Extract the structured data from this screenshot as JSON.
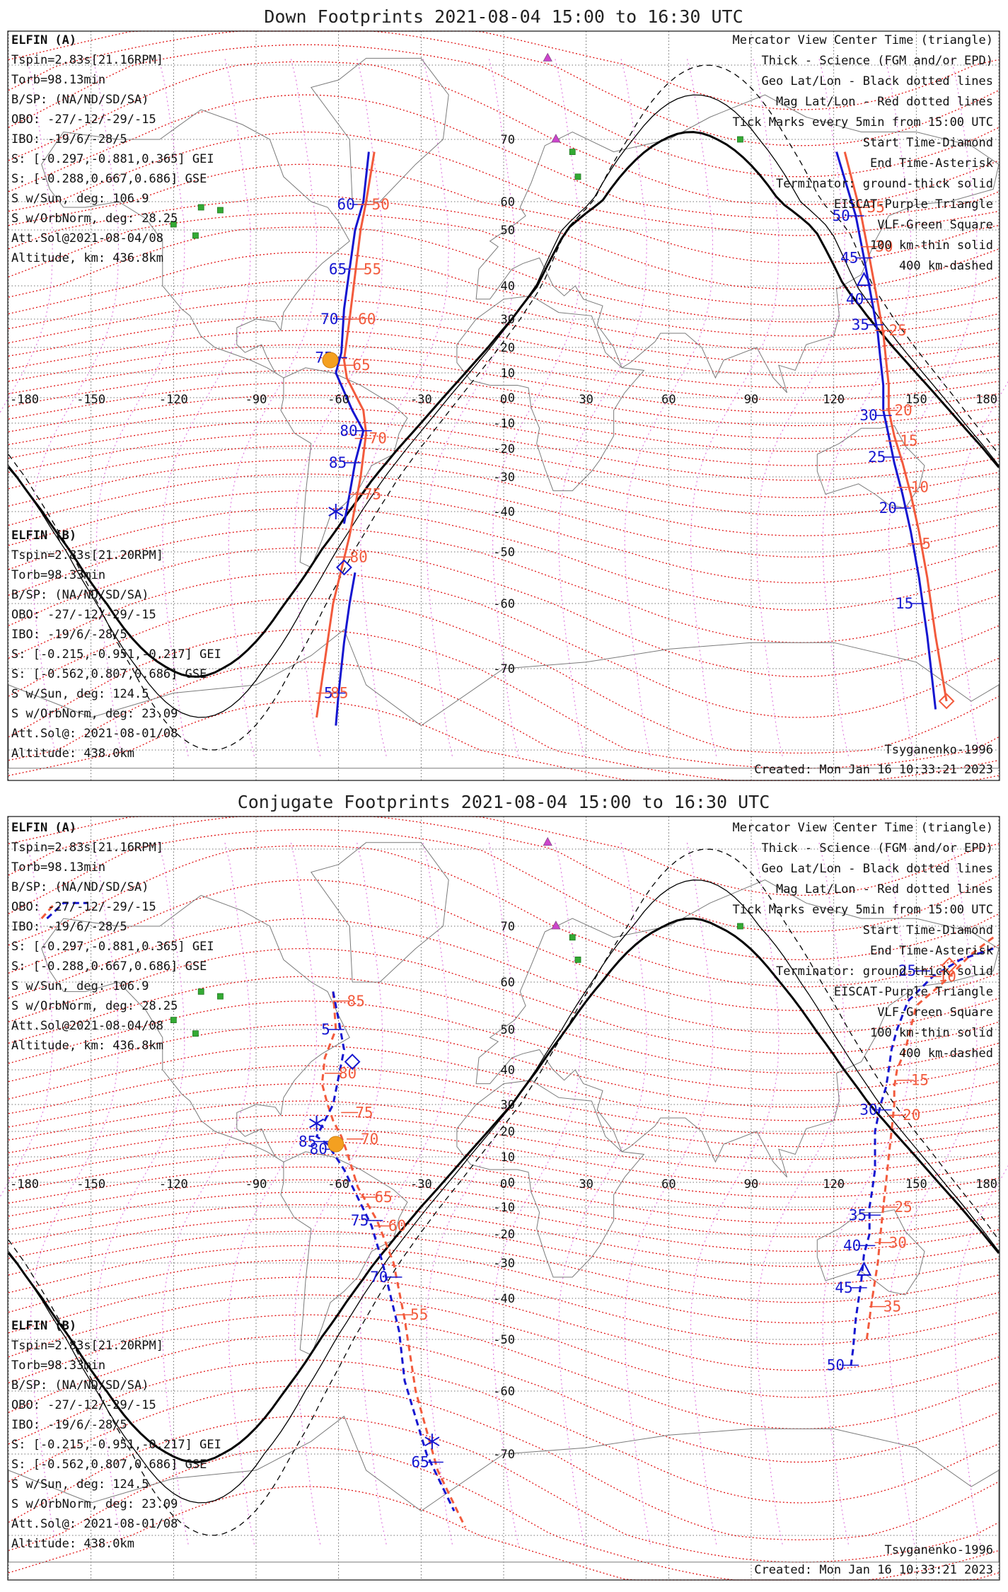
{
  "colors": {
    "elfin_a": "#1515d0",
    "elfin_b": "#f25a3c",
    "mag_grid": "#e01010",
    "eiscat": "#cc44cc",
    "vlf": "#33aa33",
    "geo_grid": "#000000",
    "sun": "#f4a020"
  },
  "panels": [
    {
      "id": "down",
      "title": "Down Footprints 2021-08-04 15:00 to 16:30 UTC",
      "sat_a": {
        "name": "ELFIN (A)",
        "lines": [
          "Tspin=2.83s[21.16RPM]",
          "Torb=98.13min",
          "B/SP: (NA/ND/SD/SA)",
          "OBO: -27/-12/-29/-15",
          "IBO: -19/6/-28/5",
          "S: [-0.297,-0.881,0.365] GEI",
          "S: [-0.288,0.667,0.686] GSE",
          "S w/Sun, deg: 106.9",
          "S w/OrbNorm, deg: 28.25",
          "Att.Sol@2021-08-04/08",
          "Altitude, km: 436.8km"
        ]
      },
      "sat_b": {
        "name": "ELFIN (B)",
        "lines": [
          "Tspin=2.83s[21.20RPM]",
          "Torb=98.33min",
          "B/SP: (NA/ND/SD/SA)",
          "OBO: -27/-12/-29/-15",
          "IBO: -19/6/-28/5",
          "S: [-0.215,-0.951,-0.217] GEI",
          "S: [-0.562,0.807,0.686] GSE",
          "S w/Sun, deg: 124.5",
          "S w/OrbNorm, deg: 23.09",
          "Att.Sol@: 2021-08-01/08",
          "Altitude: 438.0km"
        ]
      },
      "legend": [
        "Mercator View Center Time (triangle)",
        "Thick - Science (FGM and/or EPD)",
        "Geo Lat/Lon - Black dotted lines",
        "Mag Lat/Lon - Red dotted lines",
        "Tick Marks every 5min from 15:00 UTC",
        "Start Time-Diamond",
        "End Time-Asterisk",
        "Terminator: ground-thick solid",
        "EISCAT-Purple Triangle",
        "VLF-Green Square",
        "100 km-thin solid",
        "400 km-dashed"
      ],
      "model": "Tsyganenko-1996",
      "created": "Created: Mon Jan 16 10:33:21 2023",
      "lon_ticks": [
        "-180",
        "-150",
        "-120",
        "-90",
        "-60",
        "-30",
        "0",
        "30",
        "60",
        "90",
        "120",
        "150",
        "180"
      ],
      "lat_ticks": [
        "70",
        "60",
        "50",
        "40",
        "30",
        "20",
        "10",
        "0",
        "-10",
        "-20",
        "-30",
        "-40",
        "-50",
        "-60",
        "-70"
      ],
      "a_track1": [
        [
          -49,
          68
        ],
        [
          -51,
          60
        ],
        [
          -54,
          50
        ],
        [
          -56,
          43
        ],
        [
          -58,
          33
        ],
        [
          -59,
          18
        ],
        [
          -61,
          10
        ],
        [
          -55,
          -5
        ],
        [
          -51,
          -13
        ],
        [
          -54,
          -25
        ],
        [
          -56,
          -35
        ],
        [
          -58,
          -43
        ]
      ],
      "a_ticks1": [
        {
          "label": "60",
          "lon": -52,
          "lat": 59
        },
        {
          "label": "65",
          "lon": -55,
          "lat": 43
        },
        {
          "label": "70",
          "lon": -58,
          "lat": 30
        },
        {
          "label": "75",
          "lon": -60,
          "lat": 16
        },
        {
          "label": "80",
          "lon": -51,
          "lat": -13
        },
        {
          "label": "85",
          "lon": -55,
          "lat": -25
        }
      ],
      "a_track2": [
        [
          -54,
          -54
        ],
        [
          -56,
          -60
        ],
        [
          -58,
          -66
        ],
        [
          -60,
          -73
        ],
        [
          -61,
          -77
        ]
      ],
      "a_ticks2": [
        {
          "label": "5",
          "lon": -60,
          "lat": -73
        }
      ],
      "b_track1": [
        [
          -47,
          68
        ],
        [
          -50,
          60
        ],
        [
          -52,
          50
        ],
        [
          -54,
          42
        ],
        [
          -56,
          30
        ],
        [
          -58,
          15
        ],
        [
          -57,
          8
        ],
        [
          -51,
          -5
        ],
        [
          -50,
          -14
        ],
        [
          -52,
          -30
        ],
        [
          -56,
          -46
        ],
        [
          -62,
          -60
        ],
        [
          -68,
          -76
        ]
      ],
      "b_ticks1": [
        {
          "label": "50",
          "lon": -50,
          "lat": 59
        },
        {
          "label": "55",
          "lon": -53,
          "lat": 43
        },
        {
          "label": "60",
          "lon": -55,
          "lat": 30
        },
        {
          "label": "65",
          "lon": -57,
          "lat": 13
        },
        {
          "label": "70",
          "lon": -51,
          "lat": -16
        },
        {
          "label": "75",
          "lon": -53,
          "lat": -35
        },
        {
          "label": "80",
          "lon": -58,
          "lat": -51
        },
        {
          "label": "85",
          "lon": -65,
          "lat": -73
        }
      ],
      "a_track3": [
        [
          121,
          68
        ],
        [
          128,
          55
        ],
        [
          131,
          45
        ],
        [
          134,
          35
        ],
        [
          136,
          25
        ],
        [
          137,
          15
        ],
        [
          138,
          5
        ],
        [
          138,
          -5
        ],
        [
          140,
          -15
        ],
        [
          142,
          -25
        ],
        [
          145,
          -35
        ],
        [
          148,
          -45
        ],
        [
          151,
          -55
        ],
        [
          154,
          -65
        ],
        [
          157,
          -75
        ]
      ],
      "a_ticks3": [
        {
          "label": "50",
          "lon": 128,
          "lat": 55
        },
        {
          "label": "45",
          "lon": 131,
          "lat": 45
        },
        {
          "label": "40",
          "lon": 133,
          "lat": 36
        },
        {
          "label": "35",
          "lon": 135,
          "lat": 28
        },
        {
          "label": "30",
          "lon": 138,
          "lat": -7
        },
        {
          "label": "25",
          "lon": 141,
          "lat": -23
        },
        {
          "label": "20",
          "lon": 145,
          "lat": -39
        },
        {
          "label": "15",
          "lon": 151,
          "lat": -60
        }
      ],
      "b_track3": [
        [
          124,
          68
        ],
        [
          130,
          55
        ],
        [
          133,
          45
        ],
        [
          136,
          35
        ],
        [
          138,
          25
        ],
        [
          139,
          15
        ],
        [
          140,
          5
        ],
        [
          140,
          -5
        ],
        [
          142,
          -15
        ],
        [
          145,
          -25
        ],
        [
          148,
          -35
        ],
        [
          151,
          -45
        ],
        [
          154,
          -55
        ],
        [
          157,
          -65
        ],
        [
          161,
          -74
        ]
      ],
      "b_ticks3": [
        {
          "label": "35",
          "lon": 130,
          "lat": 58
        },
        {
          "label": "30",
          "lon": 133,
          "lat": 47
        },
        {
          "label": "25",
          "lon": 138,
          "lat": 26
        },
        {
          "label": "20",
          "lon": 140,
          "lat": -5
        },
        {
          "label": "15",
          "lon": 142,
          "lat": -17
        },
        {
          "label": "10",
          "lon": 146,
          "lat": -33
        },
        {
          "label": "5",
          "lon": 150,
          "lat": -48
        }
      ],
      "start_a": [
        -58,
        -53
      ],
      "start_b": [
        161,
        -74
      ],
      "end_a": [
        -61,
        -40
      ],
      "center_a": [
        131,
        41
      ],
      "sun": [
        -63,
        15
      ]
    },
    {
      "id": "conj",
      "title": "Conjugate Footprints 2021-08-04 15:00 to 16:30 UTC",
      "sat_a": {
        "name": "ELFIN (A)",
        "lines": [
          "Tspin=2.83s[21.16RPM]",
          "Torb=98.13min",
          "B/SP: (NA/ND/SD/SA)",
          "OBO: -27/-12/-29/-15",
          "IBO: -19/6/-28/5",
          "S: [-0.297,-0.881,0.365] GEI",
          "S: [-0.288,0.667,0.686] GSE",
          "S w/Sun, deg: 106.9",
          "S w/OrbNorm, deg: 28.25",
          "Att.Sol@2021-08-04/08",
          "Altitude, km: 436.8km"
        ]
      },
      "sat_b": {
        "name": "ELFIN (B)",
        "lines": [
          "Tspin=2.83s[21.20RPM]",
          "Torb=98.33min",
          "B/SP: (NA/ND/SD/SA)",
          "OBO: -27/-12/-29/-15",
          "IBO: -19/6/-28/5",
          "S: [-0.215,-0.951,-0.217] GEI",
          "S: [-0.562,0.807,0.686] GSE",
          "S w/Sun, deg: 124.5",
          "S w/OrbNorm, deg: 23.09",
          "Att.Sol@: 2021-08-01/08",
          "Altitude: 438.0km"
        ]
      },
      "legend": [
        "Mercator View Center Time (triangle)",
        "Thick - Science (FGM and/or EPD)",
        "Geo Lat/Lon - Black dotted lines",
        "Mag Lat/Lon - Red dotted lines",
        "Tick Marks every 5min from 15:00 UTC",
        "Start Time-Diamond",
        "End Time-Asterisk",
        "Terminator: ground-thick solid",
        "EISCAT-Purple Triangle",
        "VLF-Green Square",
        "100 km-thin solid",
        "400 km-dashed"
      ],
      "model": "Tsyganenko-1996",
      "created": "Created: Mon Jan 16 10:33:21 2023",
      "lon_ticks": [
        "-180",
        "-150",
        "-120",
        "-90",
        "-60",
        "-30",
        "0",
        "30",
        "60",
        "90",
        "120",
        "150",
        "180"
      ],
      "lat_ticks": [
        "70",
        "60",
        "50",
        "40",
        "30",
        "20",
        "10",
        "0",
        "-10",
        "-20",
        "-30",
        "-40",
        "-50",
        "-60",
        "-70"
      ],
      "a_track1": [
        [
          -166,
          71
        ],
        [
          -160,
          73
        ],
        [
          -151,
          73
        ]
      ],
      "a_ticks1": [],
      "a_track2": [
        [
          -62,
          58
        ],
        [
          -60,
          52
        ],
        [
          -58,
          45
        ],
        [
          -62,
          30
        ],
        [
          -68,
          18
        ],
        [
          -64,
          15
        ],
        [
          -58,
          5
        ],
        [
          -48,
          -17
        ],
        [
          -44,
          -30
        ],
        [
          -38,
          -48
        ],
        [
          -36,
          -58
        ],
        [
          -28,
          -70
        ],
        [
          -18,
          -77
        ]
      ],
      "a_ticks2": [
        {
          "label": "5",
          "lon": -61,
          "lat": 50
        },
        {
          "label": "85",
          "lon": -66,
          "lat": 16
        },
        {
          "label": "80",
          "lon": -62,
          "lat": 13
        },
        {
          "label": "75",
          "lon": -47,
          "lat": -15
        },
        {
          "label": "70",
          "lon": -40,
          "lat": -34
        },
        {
          "label": "65",
          "lon": -25,
          "lat": -71
        }
      ],
      "b_track1": [
        [
          -168,
          71
        ],
        [
          -163,
          73
        ]
      ],
      "b_ticks1": [],
      "b_track2": [
        [
          -62,
          58
        ],
        [
          -61,
          50
        ],
        [
          -65,
          43
        ],
        [
          -66,
          36
        ],
        [
          -64,
          30
        ],
        [
          -62,
          24
        ],
        [
          -59,
          18
        ],
        [
          -57,
          12
        ],
        [
          -53,
          -2
        ],
        [
          -46,
          -15
        ],
        [
          -40,
          -30
        ],
        [
          -36,
          -45
        ],
        [
          -32,
          -60
        ],
        [
          -24,
          -72
        ],
        [
          -14,
          -79
        ]
      ],
      "b_ticks2": [
        {
          "label": "85",
          "lon": -59,
          "lat": 56
        },
        {
          "label": "80",
          "lon": -62,
          "lat": 39
        },
        {
          "label": "75",
          "lon": -56,
          "lat": 27
        },
        {
          "label": "70",
          "lon": -54,
          "lat": 17
        },
        {
          "label": "65",
          "lon": -49,
          "lat": -6
        },
        {
          "label": "60",
          "lon": -44,
          "lat": -17
        },
        {
          "label": "55",
          "lon": -36,
          "lat": -44
        }
      ],
      "a_track3": [
        [
          178,
          66
        ],
        [
          166,
          64
        ],
        [
          156,
          61
        ],
        [
          147,
          56
        ],
        [
          143,
          50
        ],
        [
          141,
          45
        ],
        [
          140,
          40
        ],
        [
          139,
          35
        ],
        [
          137,
          30
        ],
        [
          136,
          25
        ],
        [
          135,
          20
        ],
        [
          135,
          15
        ],
        [
          135,
          10
        ],
        [
          135,
          5
        ],
        [
          134,
          -3
        ],
        [
          133,
          -10
        ],
        [
          133,
          -20
        ],
        [
          131,
          -27
        ],
        [
          130,
          -35
        ],
        [
          128,
          -45
        ],
        [
          127,
          -52
        ],
        [
          126,
          -56
        ]
      ],
      "a_ticks3": [
        {
          "label": "25",
          "lon": 152,
          "lat": 62
        },
        {
          "label": "30",
          "lon": 138,
          "lat": 28
        },
        {
          "label": "35",
          "lon": 134,
          "lat": -13
        },
        {
          "label": "40",
          "lon": 132,
          "lat": -24
        },
        {
          "label": "45",
          "lon": 129,
          "lat": -37
        },
        {
          "label": "50",
          "lon": 126,
          "lat": -55
        }
      ],
      "b_track3": [
        [
          178,
          68
        ],
        [
          170,
          65
        ],
        [
          160,
          60
        ],
        [
          150,
          55
        ],
        [
          146,
          45
        ],
        [
          143,
          40
        ],
        [
          142,
          35
        ],
        [
          142,
          30
        ],
        [
          141,
          20
        ],
        [
          140,
          10
        ],
        [
          139,
          0
        ],
        [
          138,
          -10
        ],
        [
          137,
          -20
        ],
        [
          136,
          -30
        ],
        [
          134,
          -40
        ],
        [
          132,
          -50
        ]
      ],
      "b_ticks3": [
        {
          "label": "10",
          "lon": 156,
          "lat": 61
        },
        {
          "label": "15",
          "lon": 146,
          "lat": 37
        },
        {
          "label": "20",
          "lon": 143,
          "lat": 26
        },
        {
          "label": "25",
          "lon": 140,
          "lat": -10
        },
        {
          "label": "30",
          "lon": 138,
          "lat": -23
        },
        {
          "label": "35",
          "lon": 136,
          "lat": -42
        }
      ],
      "start_a": [
        -55,
        42
      ],
      "start_b": [
        162,
        63
      ],
      "end_a": [
        -68,
        23
      ],
      "end_b": [
        -26,
        -68
      ],
      "center_a": [
        131,
        -32
      ],
      "sun": [
        -61,
        15
      ]
    }
  ],
  "eiscat": [
    [
      16,
      82
    ],
    [
      19,
      70
    ]
  ],
  "vlf": [
    [
      25,
      68
    ],
    [
      27,
      64
    ],
    [
      86,
      70
    ],
    [
      -110,
      58
    ],
    [
      -103,
      57
    ],
    [
      -120,
      52
    ],
    [
      -112,
      49
    ]
  ]
}
